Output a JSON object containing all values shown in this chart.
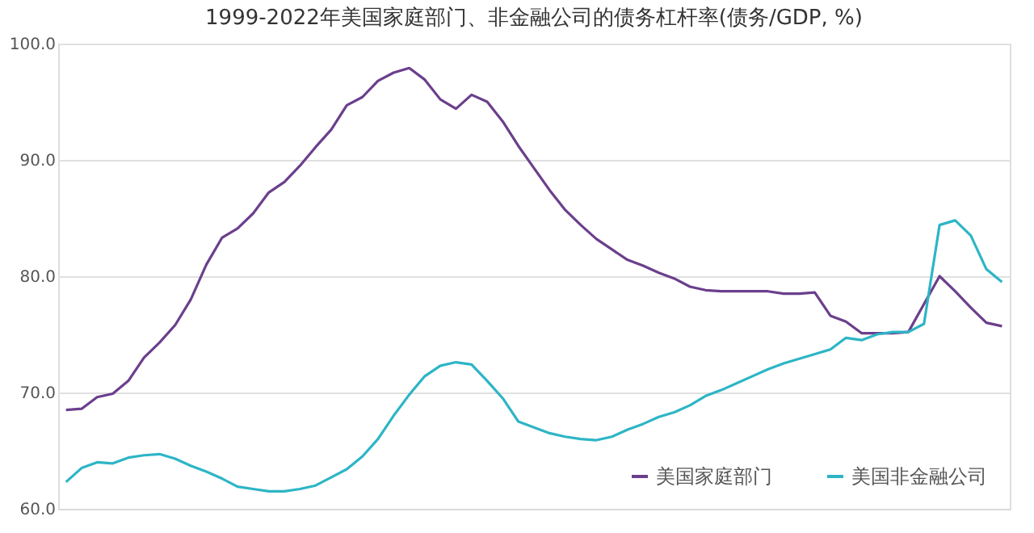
{
  "chart_data": {
    "type": "line",
    "title": "1999-2022年美国家庭部门、非金融公司的债务杠杆率(债务/GDP, %)",
    "categories": [
      null,
      null,
      null,
      null,
      null,
      null,
      null,
      null,
      null,
      null,
      null,
      null,
      null,
      null,
      null,
      null,
      null,
      null,
      null,
      null,
      null,
      null,
      null,
      null,
      null,
      null,
      null,
      null,
      null,
      null,
      null,
      null,
      null,
      null,
      null,
      null,
      null,
      null,
      null,
      null,
      null,
      null,
      null,
      null,
      null,
      null,
      null,
      null,
      null,
      null,
      null,
      null,
      null,
      null,
      null,
      null,
      null,
      null,
      null,
      null,
      null
    ],
    "series": [
      {
        "name": "美国家庭部门",
        "color": "#6b3f8c",
        "values": [
          68.5,
          68.6,
          69.6,
          69.9,
          71.0,
          73.0,
          74.3,
          75.8,
          78.0,
          81.0,
          83.3,
          84.1,
          85.4,
          87.2,
          88.1,
          89.5,
          91.1,
          92.6,
          94.7,
          95.4,
          96.8,
          97.5,
          97.9,
          96.9,
          95.2,
          94.4,
          95.6,
          95.0,
          93.3,
          91.2,
          89.3,
          87.4,
          85.7,
          84.4,
          83.2,
          82.3,
          81.4,
          80.9,
          80.3,
          79.8,
          79.1,
          78.8,
          78.7,
          78.7,
          78.7,
          78.7,
          78.5,
          78.5,
          78.6,
          76.6,
          76.1,
          75.1,
          75.1,
          75.1,
          75.2,
          77.6,
          80.0,
          78.7,
          77.3,
          76.0,
          75.7
        ]
      },
      {
        "name": "美国非金融公司",
        "color": "#2db5c6",
        "values": [
          62.3,
          63.5,
          64.0,
          63.9,
          64.4,
          64.6,
          64.7,
          64.3,
          63.7,
          63.2,
          62.6,
          61.9,
          61.7,
          61.5,
          61.5,
          61.7,
          62.0,
          62.7,
          63.4,
          64.5,
          66.0,
          68.0,
          69.8,
          71.4,
          72.3,
          72.6,
          72.4,
          71.0,
          69.5,
          67.5,
          67.0,
          66.5,
          66.2,
          66.0,
          65.9,
          66.2,
          66.8,
          67.3,
          67.9,
          68.3,
          68.9,
          69.7,
          70.2,
          70.8,
          71.4,
          72.0,
          72.5,
          72.9,
          73.3,
          73.7,
          74.7,
          74.5,
          75.0,
          75.2,
          75.2,
          75.9,
          84.4,
          84.8,
          83.5,
          80.6,
          79.5
        ]
      }
    ],
    "ylim": [
      60,
      100
    ],
    "yticks": [
      {
        "value": 60,
        "label": "60.0"
      },
      {
        "value": 70,
        "label": "70.0"
      },
      {
        "value": 80,
        "label": "80.0"
      },
      {
        "value": 90,
        "label": "90.0"
      },
      {
        "value": 100,
        "label": "100.0"
      }
    ],
    "grid": "y",
    "legend": "bottom right",
    "tick_labels": "y",
    "marker": "none",
    "line_style": "solid"
  }
}
